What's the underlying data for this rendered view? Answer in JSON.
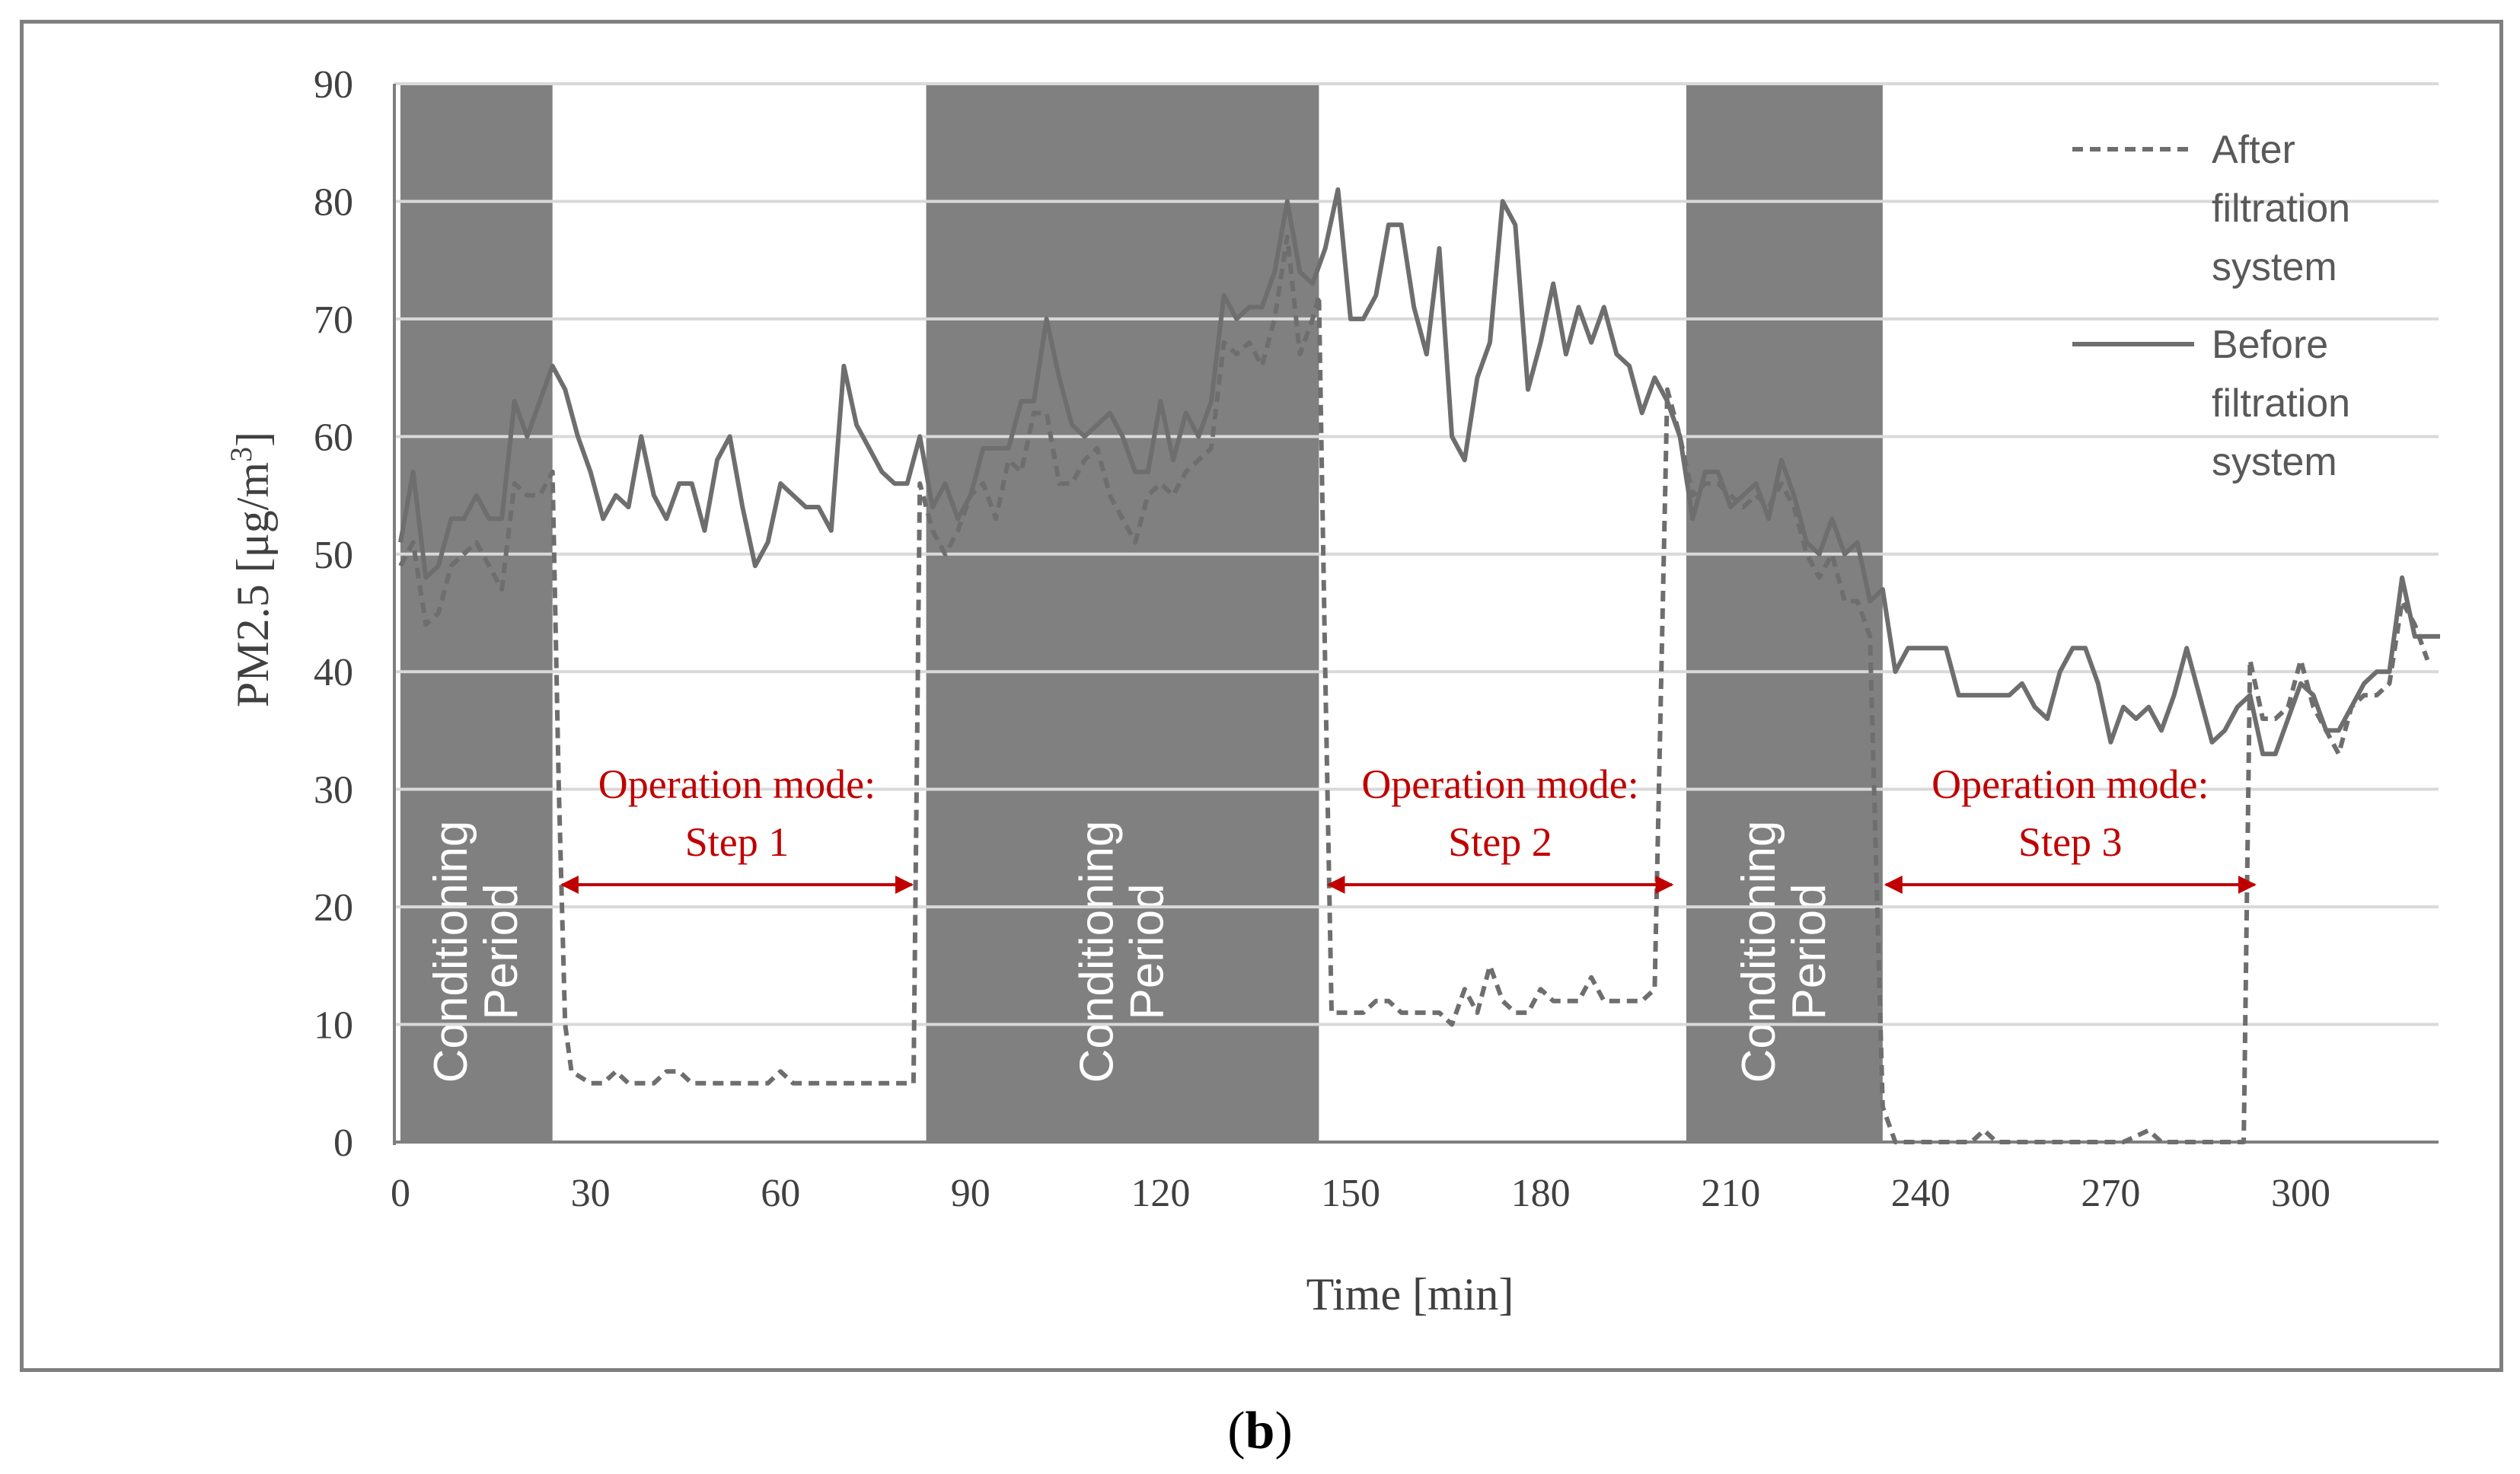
{
  "chart_data": {
    "type": "line",
    "title": "",
    "xlabel": "Time [min]",
    "ylabel": "PM2.5 [μg/m3]",
    "ylabel_parts": {
      "main": "PM2.5 [μg/m",
      "sup": "3",
      "close": "]"
    },
    "xlim": [
      0,
      323
    ],
    "ylim": [
      0,
      90
    ],
    "xticks": [
      0,
      30,
      60,
      90,
      120,
      150,
      180,
      210,
      240,
      270,
      300
    ],
    "yticks": [
      0,
      10,
      20,
      30,
      40,
      50,
      60,
      70,
      80,
      90
    ],
    "grid": "horizontal",
    "legend": {
      "placement": "top-right",
      "entries": [
        {
          "name": "After filtration system",
          "lines": [
            "After",
            "filtration",
            "system"
          ],
          "style": "dashed"
        },
        {
          "name": "Before filtration system",
          "lines": [
            "Before",
            "filtration",
            "system"
          ],
          "style": "solid"
        }
      ]
    },
    "conditioning_periods": [
      {
        "start": 0,
        "end": 24,
        "label_lines": [
          "Conditioning",
          "Period"
        ]
      },
      {
        "start": 83,
        "end": 145,
        "label_lines": [
          "Conditioning",
          "Period"
        ]
      },
      {
        "start": 203,
        "end": 234,
        "label_lines": [
          "Conditioning",
          "Period"
        ]
      }
    ],
    "operation_annotations": [
      {
        "start": 26,
        "end": 80,
        "lines": [
          "Operation mode:",
          "Step 1"
        ]
      },
      {
        "start": 147,
        "end": 200,
        "lines": [
          "Operation mode:",
          "Step 2"
        ]
      },
      {
        "start": 235,
        "end": 292,
        "lines": [
          "Operation mode:",
          "Step 3"
        ]
      }
    ],
    "series": [
      {
        "name": "Before filtration system",
        "style": "solid",
        "points": [
          [
            0,
            51
          ],
          [
            2,
            57
          ],
          [
            4,
            48
          ],
          [
            6,
            49
          ],
          [
            8,
            53
          ],
          [
            10,
            53
          ],
          [
            12,
            55
          ],
          [
            14,
            53
          ],
          [
            16,
            53
          ],
          [
            18,
            63
          ],
          [
            20,
            60
          ],
          [
            22,
            63
          ],
          [
            24,
            66
          ],
          [
            26,
            64
          ],
          [
            28,
            60
          ],
          [
            30,
            57
          ],
          [
            32,
            53
          ],
          [
            34,
            55
          ],
          [
            36,
            54
          ],
          [
            38,
            60
          ],
          [
            40,
            55
          ],
          [
            42,
            53
          ],
          [
            44,
            56
          ],
          [
            46,
            56
          ],
          [
            48,
            52
          ],
          [
            50,
            58
          ],
          [
            52,
            60
          ],
          [
            54,
            54
          ],
          [
            56,
            49
          ],
          [
            58,
            51
          ],
          [
            60,
            56
          ],
          [
            62,
            55
          ],
          [
            64,
            54
          ],
          [
            66,
            54
          ],
          [
            68,
            52
          ],
          [
            70,
            66
          ],
          [
            72,
            61
          ],
          [
            74,
            59
          ],
          [
            76,
            57
          ],
          [
            78,
            56
          ],
          [
            80,
            56
          ],
          [
            82,
            60
          ],
          [
            84,
            54
          ],
          [
            86,
            56
          ],
          [
            88,
            53
          ],
          [
            90,
            55
          ],
          [
            92,
            59
          ],
          [
            94,
            59
          ],
          [
            96,
            59
          ],
          [
            98,
            63
          ],
          [
            100,
            63
          ],
          [
            102,
            70
          ],
          [
            104,
            65
          ],
          [
            106,
            61
          ],
          [
            108,
            60
          ],
          [
            110,
            61
          ],
          [
            112,
            62
          ],
          [
            114,
            60
          ],
          [
            116,
            57
          ],
          [
            118,
            57
          ],
          [
            120,
            63
          ],
          [
            122,
            58
          ],
          [
            124,
            62
          ],
          [
            126,
            60
          ],
          [
            128,
            63
          ],
          [
            130,
            72
          ],
          [
            132,
            70
          ],
          [
            134,
            71
          ],
          [
            136,
            71
          ],
          [
            138,
            74
          ],
          [
            140,
            80
          ],
          [
            142,
            74
          ],
          [
            144,
            73
          ],
          [
            146,
            76
          ],
          [
            148,
            81
          ],
          [
            150,
            70
          ],
          [
            152,
            70
          ],
          [
            154,
            72
          ],
          [
            156,
            78
          ],
          [
            158,
            78
          ],
          [
            160,
            71
          ],
          [
            162,
            67
          ],
          [
            164,
            76
          ],
          [
            166,
            60
          ],
          [
            168,
            58
          ],
          [
            170,
            65
          ],
          [
            172,
            68
          ],
          [
            174,
            80
          ],
          [
            176,
            78
          ],
          [
            178,
            64
          ],
          [
            180,
            68
          ],
          [
            182,
            73
          ],
          [
            184,
            67
          ],
          [
            186,
            71
          ],
          [
            188,
            68
          ],
          [
            190,
            71
          ],
          [
            192,
            67
          ],
          [
            194,
            66
          ],
          [
            196,
            62
          ],
          [
            198,
            65
          ],
          [
            200,
            63
          ],
          [
            202,
            60
          ],
          [
            204,
            53
          ],
          [
            206,
            57
          ],
          [
            208,
            57
          ],
          [
            210,
            54
          ],
          [
            212,
            55
          ],
          [
            214,
            56
          ],
          [
            216,
            53
          ],
          [
            218,
            58
          ],
          [
            220,
            55
          ],
          [
            222,
            51
          ],
          [
            224,
            50
          ],
          [
            226,
            53
          ],
          [
            228,
            50
          ],
          [
            230,
            51
          ],
          [
            232,
            46
          ],
          [
            234,
            47
          ],
          [
            236,
            40
          ],
          [
            238,
            42
          ],
          [
            240,
            42
          ],
          [
            242,
            42
          ],
          [
            244,
            42
          ],
          [
            246,
            38
          ],
          [
            248,
            38
          ],
          [
            250,
            38
          ],
          [
            252,
            38
          ],
          [
            254,
            38
          ],
          [
            256,
            39
          ],
          [
            258,
            37
          ],
          [
            260,
            36
          ],
          [
            262,
            40
          ],
          [
            264,
            42
          ],
          [
            266,
            42
          ],
          [
            268,
            39
          ],
          [
            270,
            34
          ],
          [
            272,
            37
          ],
          [
            274,
            36
          ],
          [
            276,
            37
          ],
          [
            278,
            35
          ],
          [
            280,
            38
          ],
          [
            282,
            42
          ],
          [
            284,
            38
          ],
          [
            286,
            34
          ],
          [
            288,
            35
          ],
          [
            290,
            37
          ],
          [
            292,
            38
          ],
          [
            294,
            33
          ],
          [
            296,
            33
          ],
          [
            298,
            36
          ],
          [
            300,
            39
          ],
          [
            302,
            38
          ],
          [
            304,
            35
          ],
          [
            306,
            35
          ],
          [
            308,
            37
          ],
          [
            310,
            39
          ],
          [
            312,
            40
          ],
          [
            314,
            40
          ],
          [
            316,
            48
          ],
          [
            318,
            43
          ],
          [
            320,
            43
          ],
          [
            322,
            43
          ]
        ]
      },
      {
        "name": "After filtration system",
        "style": "dashed",
        "points": [
          [
            0,
            49
          ],
          [
            2,
            51
          ],
          [
            4,
            44
          ],
          [
            6,
            45
          ],
          [
            8,
            49
          ],
          [
            10,
            50
          ],
          [
            12,
            51
          ],
          [
            14,
            49
          ],
          [
            16,
            47
          ],
          [
            18,
            56
          ],
          [
            20,
            55
          ],
          [
            22,
            55
          ],
          [
            24,
            57
          ],
          [
            25,
            30
          ],
          [
            26,
            10
          ],
          [
            27,
            6
          ],
          [
            30,
            5
          ],
          [
            32,
            5
          ],
          [
            34,
            6
          ],
          [
            36,
            5
          ],
          [
            40,
            5
          ],
          [
            42,
            6
          ],
          [
            44,
            6
          ],
          [
            46,
            5
          ],
          [
            50,
            5
          ],
          [
            52,
            5
          ],
          [
            56,
            5
          ],
          [
            58,
            5
          ],
          [
            60,
            6
          ],
          [
            62,
            5
          ],
          [
            66,
            5
          ],
          [
            70,
            5
          ],
          [
            74,
            5
          ],
          [
            78,
            5
          ],
          [
            81,
            5
          ],
          [
            82,
            56
          ],
          [
            84,
            52
          ],
          [
            86,
            50
          ],
          [
            88,
            52
          ],
          [
            90,
            55
          ],
          [
            92,
            56
          ],
          [
            94,
            53
          ],
          [
            96,
            58
          ],
          [
            98,
            57
          ],
          [
            100,
            62
          ],
          [
            102,
            62
          ],
          [
            104,
            56
          ],
          [
            106,
            56
          ],
          [
            108,
            58
          ],
          [
            110,
            59
          ],
          [
            112,
            55
          ],
          [
            114,
            53
          ],
          [
            116,
            51
          ],
          [
            118,
            55
          ],
          [
            120,
            56
          ],
          [
            122,
            55
          ],
          [
            124,
            57
          ],
          [
            126,
            58
          ],
          [
            128,
            59
          ],
          [
            130,
            68
          ],
          [
            132,
            67
          ],
          [
            134,
            68
          ],
          [
            136,
            66
          ],
          [
            138,
            70
          ],
          [
            140,
            77
          ],
          [
            142,
            67
          ],
          [
            144,
            70
          ],
          [
            145,
            72
          ],
          [
            146,
            40
          ],
          [
            147,
            11
          ],
          [
            150,
            11
          ],
          [
            152,
            11
          ],
          [
            154,
            12
          ],
          [
            156,
            12
          ],
          [
            158,
            11
          ],
          [
            160,
            11
          ],
          [
            162,
            11
          ],
          [
            164,
            11
          ],
          [
            166,
            10
          ],
          [
            168,
            13
          ],
          [
            170,
            11
          ],
          [
            172,
            15
          ],
          [
            174,
            12
          ],
          [
            176,
            11
          ],
          [
            178,
            11
          ],
          [
            180,
            13
          ],
          [
            182,
            12
          ],
          [
            184,
            12
          ],
          [
            186,
            12
          ],
          [
            188,
            14
          ],
          [
            190,
            12
          ],
          [
            192,
            12
          ],
          [
            194,
            12
          ],
          [
            196,
            12
          ],
          [
            198,
            13
          ],
          [
            200,
            64
          ],
          [
            202,
            60
          ],
          [
            204,
            55
          ],
          [
            206,
            56
          ],
          [
            208,
            56
          ],
          [
            210,
            55
          ],
          [
            212,
            54
          ],
          [
            214,
            55
          ],
          [
            216,
            54
          ],
          [
            218,
            56
          ],
          [
            220,
            54
          ],
          [
            222,
            50
          ],
          [
            224,
            48
          ],
          [
            226,
            50
          ],
          [
            228,
            46
          ],
          [
            230,
            46
          ],
          [
            232,
            43
          ],
          [
            234,
            3
          ],
          [
            236,
            0
          ],
          [
            240,
            0
          ],
          [
            244,
            0
          ],
          [
            246,
            0
          ],
          [
            248,
            0
          ],
          [
            250,
            1
          ],
          [
            252,
            0
          ],
          [
            256,
            0
          ],
          [
            260,
            0
          ],
          [
            264,
            0
          ],
          [
            268,
            0
          ],
          [
            272,
            0
          ],
          [
            276,
            1
          ],
          [
            278,
            0
          ],
          [
            282,
            0
          ],
          [
            286,
            0
          ],
          [
            290,
            0
          ],
          [
            291,
            0
          ],
          [
            292,
            41
          ],
          [
            294,
            36
          ],
          [
            296,
            36
          ],
          [
            298,
            37
          ],
          [
            300,
            41
          ],
          [
            302,
            37
          ],
          [
            304,
            35
          ],
          [
            306,
            33
          ],
          [
            308,
            37
          ],
          [
            310,
            38
          ],
          [
            312,
            38
          ],
          [
            314,
            39
          ],
          [
            316,
            46
          ],
          [
            318,
            44
          ],
          [
            320,
            41
          ]
        ]
      }
    ]
  },
  "colors": {
    "conditioning_fill": "#808080",
    "line_color": "#6e6e6e",
    "grid_color": "#d9d9d9",
    "axis_color": "#7f7f7f",
    "tick_text": "#404040",
    "annotation_red": "#c00000",
    "period_text": "#ffffff",
    "legend_text": "#595959"
  },
  "caption": {
    "letter": "b"
  }
}
